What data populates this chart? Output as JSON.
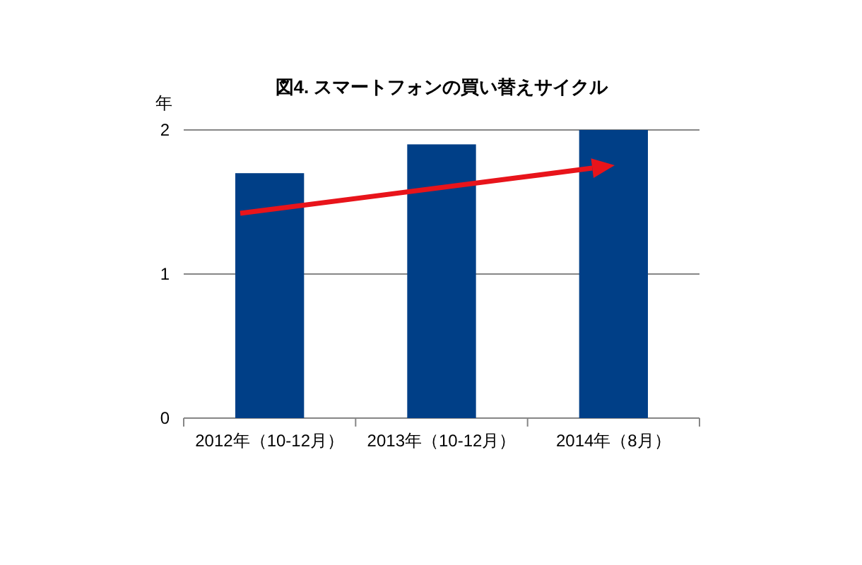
{
  "chart_data": {
    "type": "bar",
    "title": "図4. スマートフォンの買い替えサイクル",
    "ylabel": "年",
    "categories": [
      "2012年（10-12月）",
      "2013年（10-12月）",
      "2014年（8月）"
    ],
    "values": [
      1.7,
      1.9,
      2.0
    ],
    "color": "#003f87",
    "ylim": [
      0,
      2
    ],
    "yticks": [
      0,
      1,
      2
    ],
    "grid": "y"
  }
}
